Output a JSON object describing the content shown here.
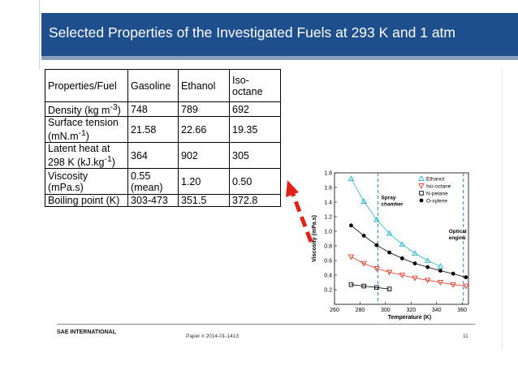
{
  "slide": {
    "title": "Selected Properties of the Investigated Fuels at 293 K and 1 atm",
    "footer_left": "SAE INTERNATIONAL",
    "footer_center": "Paper # 2014-01-1413",
    "footer_page": "11"
  },
  "colors": {
    "header_blue": "#1f4e8c",
    "arrow_red": "#e0221b"
  },
  "table": {
    "header": [
      "Properties/Fuel",
      "Gasoline",
      "Ethanol",
      "Iso-octane"
    ],
    "rows": [
      {
        "property": "Density (kg m-3)",
        "values": [
          "748",
          "789",
          "692"
        ]
      },
      {
        "property": "Surface tension (mN.m-1)",
        "values": [
          "21.58",
          "22.66",
          "19.35"
        ]
      },
      {
        "property": "Latent heat at 298 K (kJ.kg-1)",
        "values": [
          "364",
          "902",
          "305"
        ]
      },
      {
        "property": "Viscosity (mPa.s)",
        "values": [
          "0.55 (mean)",
          "1.20",
          "0.50"
        ]
      },
      {
        "property": "Boiling point (K)",
        "values": [
          "303-473",
          "351.5",
          "372.8"
        ]
      }
    ]
  },
  "chart_data": {
    "type": "scatter",
    "xlabel": "Temperature (K)",
    "ylabel": "Viscosity (mPa.s)",
    "xlim": [
      260,
      365
    ],
    "ylim": [
      0,
      1.8
    ],
    "xticks": [
      260,
      280,
      300,
      320,
      340,
      360
    ],
    "yticks": [
      0.2,
      0.4,
      0.6,
      0.8,
      1.0,
      1.2,
      1.4,
      1.6,
      1.8
    ],
    "series": [
      {
        "name": "Ethanol",
        "marker": "triangle-up-open",
        "color": "#2ab5c8",
        "x": [
          273,
          283,
          293,
          303,
          313,
          323,
          333,
          343
        ],
        "y": [
          1.72,
          1.41,
          1.16,
          0.97,
          0.82,
          0.7,
          0.6,
          0.52
        ]
      },
      {
        "name": "Iso-octane",
        "marker": "triangle-down-open",
        "color": "#e03b2a",
        "x": [
          273,
          283,
          293,
          303,
          313,
          323,
          333,
          343,
          353,
          363
        ],
        "y": [
          0.65,
          0.56,
          0.49,
          0.44,
          0.4,
          0.36,
          0.33,
          0.3,
          0.27,
          0.25
        ]
      },
      {
        "name": "N-petane",
        "marker": "square-open",
        "color": "#000000",
        "x": [
          273,
          283,
          293,
          303
        ],
        "y": [
          0.27,
          0.25,
          0.23,
          0.21
        ]
      },
      {
        "name": "O-xylene",
        "marker": "circle-filled",
        "color": "#000000",
        "x": [
          273,
          283,
          293,
          303,
          313,
          323,
          333,
          343,
          353,
          363
        ],
        "y": [
          1.08,
          0.94,
          0.81,
          0.71,
          0.63,
          0.56,
          0.51,
          0.46,
          0.42,
          0.37
        ]
      }
    ],
    "vlines": [
      {
        "x": 294,
        "label": "Spray chamber"
      },
      {
        "x": 361,
        "label": "Optical engine"
      }
    ],
    "legend_position": "top-right",
    "grid": false
  }
}
